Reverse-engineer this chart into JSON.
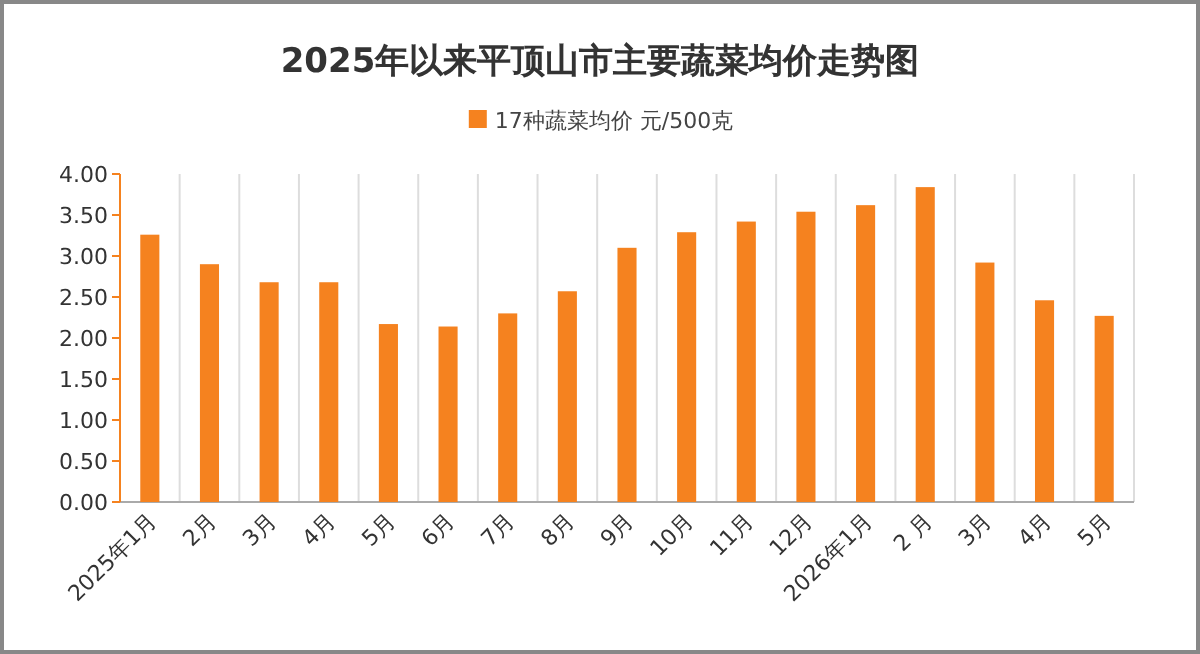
{
  "chart_data": {
    "type": "bar",
    "title": "2025年以来平顶山市主要蔬菜均价走势图",
    "categories": [
      "2025年1月",
      "2月",
      "3月",
      "4月",
      "5月",
      "6月",
      "7月",
      "8月",
      "9月",
      "10月",
      "11月",
      "12月",
      "2026年1月",
      "2 月",
      "3月",
      "4月",
      "5月"
    ],
    "series": [
      {
        "name": "17种蔬菜均价  元/500克",
        "color": "#f5821f",
        "values": [
          3.26,
          2.9,
          2.68,
          2.68,
          2.17,
          2.14,
          2.3,
          2.57,
          3.1,
          3.29,
          3.42,
          3.54,
          3.62,
          3.84,
          2.92,
          2.46,
          2.27
        ]
      }
    ],
    "ylim": [
      0,
      4
    ],
    "yticks": [
      {
        "value": 0,
        "label": "0.00"
      },
      {
        "value": 0.5,
        "label": "0.50"
      },
      {
        "value": 1,
        "label": "1.00"
      },
      {
        "value": 1.5,
        "label": "1.50"
      },
      {
        "value": 2,
        "label": "2.00"
      },
      {
        "value": 2.5,
        "label": "2.50"
      },
      {
        "value": 3,
        "label": "3.00"
      },
      {
        "value": 3.5,
        "label": "3.50"
      },
      {
        "value": 4,
        "label": "4.00"
      }
    ],
    "grid": "x",
    "legend": "top"
  }
}
